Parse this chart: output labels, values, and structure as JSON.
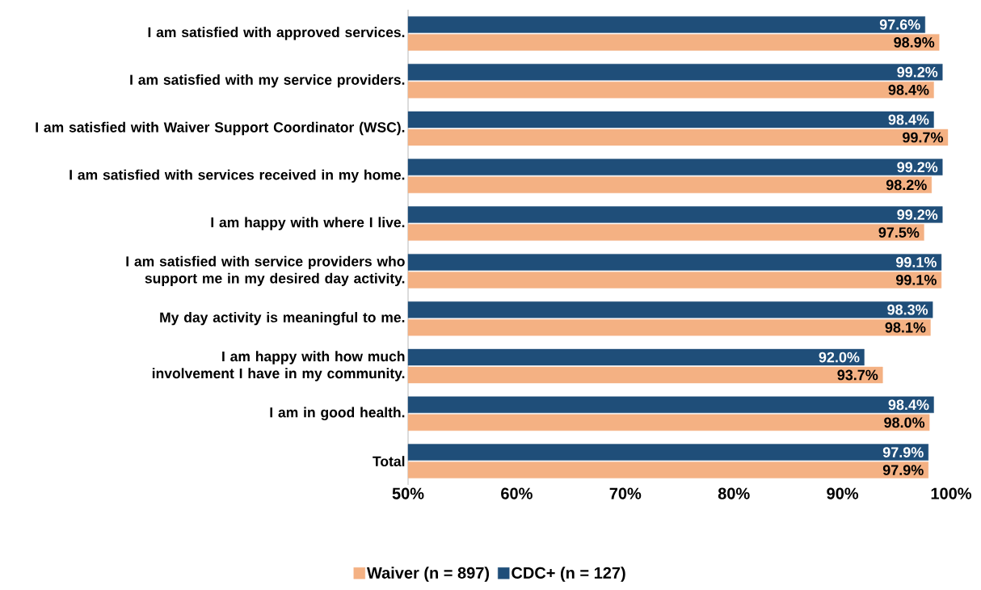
{
  "chart_data": {
    "type": "bar",
    "orientation": "horizontal",
    "categories": [
      "I am satisfied with approved services.",
      "I am satisfied with my service providers.",
      "I am satisfied with Waiver Support Coordinator (WSC).",
      "I am satisfied with services received in my home.",
      "I am happy with where I live.",
      "I am satisfied with service providers who support me in my desired day activity.",
      "My day activity is meaningful to me.",
      "I am happy with how much involvement I have in my community.",
      "I am in good health.",
      "Total"
    ],
    "series": [
      {
        "name": "Waiver (n = 897)",
        "color": "#f4b183",
        "values": [
          98.9,
          98.4,
          99.7,
          98.2,
          97.5,
          99.1,
          98.1,
          93.7,
          98.0,
          97.9
        ],
        "value_labels": [
          "98.9%",
          "98.4%",
          "99.7%",
          "98.2%",
          "97.5%",
          "99.1%",
          "98.1%",
          "93.7%",
          "98.0%",
          "97.9%"
        ]
      },
      {
        "name": "CDC+ (n = 127)",
        "color": "#1f4e79",
        "values": [
          97.6,
          99.2,
          98.4,
          99.2,
          99.2,
          99.1,
          98.3,
          92.0,
          98.4,
          97.9
        ],
        "value_labels": [
          "97.6%",
          "99.2%",
          "98.4%",
          "99.2%",
          "99.2%",
          "99.1%",
          "98.3%",
          "92.0%",
          "98.4%",
          "97.9%"
        ]
      }
    ],
    "xlim": [
      50,
      100
    ],
    "xticks": [
      {
        "value": 50,
        "label": "50%"
      },
      {
        "value": 60,
        "label": "60%"
      },
      {
        "value": 70,
        "label": "70%"
      },
      {
        "value": 80,
        "label": "80%"
      },
      {
        "value": 90,
        "label": "90%"
      },
      {
        "value": 100,
        "label": "100%"
      }
    ],
    "legend": "bottom"
  }
}
